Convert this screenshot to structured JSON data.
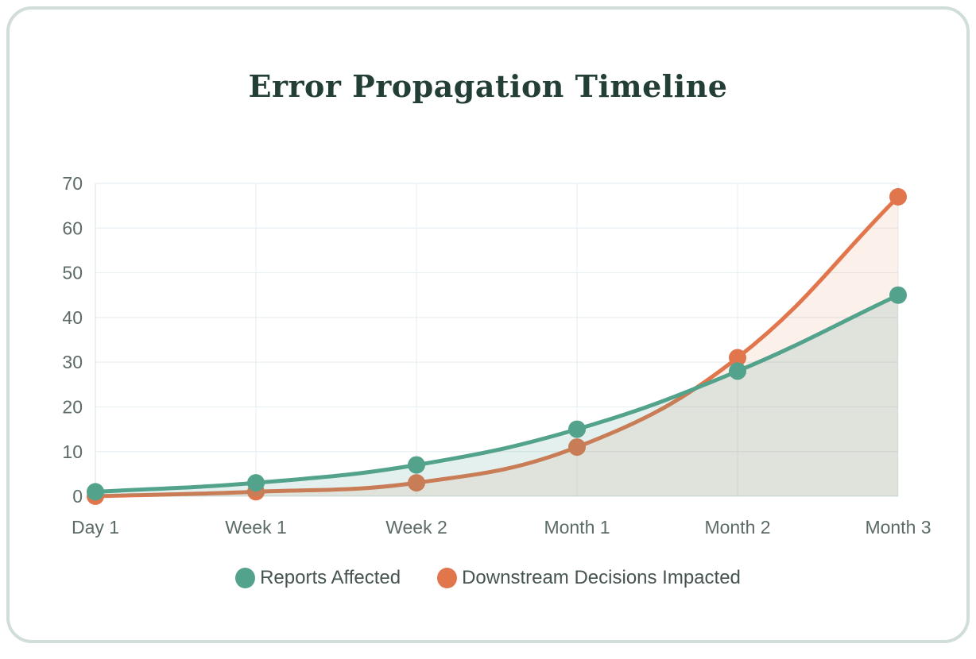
{
  "page": {
    "background": "#ffffff"
  },
  "card": {
    "border_color": "#d1ddda"
  },
  "chart_data": {
    "type": "line",
    "title": "Error Propagation Timeline",
    "categories": [
      "Day 1",
      "Week 1",
      "Week 2",
      "Month 1",
      "Month 2",
      "Month 3"
    ],
    "series": [
      {
        "name": "Reports Affected",
        "color": "#53a28c",
        "fill_color": "rgba(83,162,140,0.16)",
        "values": [
          1,
          3,
          7,
          15,
          28,
          45
        ]
      },
      {
        "name": "Downstream Decisions Impacted",
        "color": "#e1764d",
        "fill_color": "rgba(225,118,77,0.11)",
        "values": [
          0,
          1,
          3,
          11,
          31,
          67
        ]
      }
    ],
    "xlabel": "",
    "ylabel": "",
    "ylim": [
      0,
      70
    ],
    "yticks": [
      0,
      10,
      20,
      30,
      40,
      50,
      60,
      70
    ],
    "grid": true,
    "legend_position": "bottom",
    "style": {
      "grid_color": "#e8eff2",
      "axis_color": "#e2eaec",
      "tick_color": "#5c6b68",
      "title_color": "#233e36",
      "legend_text_color": "#46544f",
      "line_width": 5,
      "point_radius": 11
    }
  }
}
